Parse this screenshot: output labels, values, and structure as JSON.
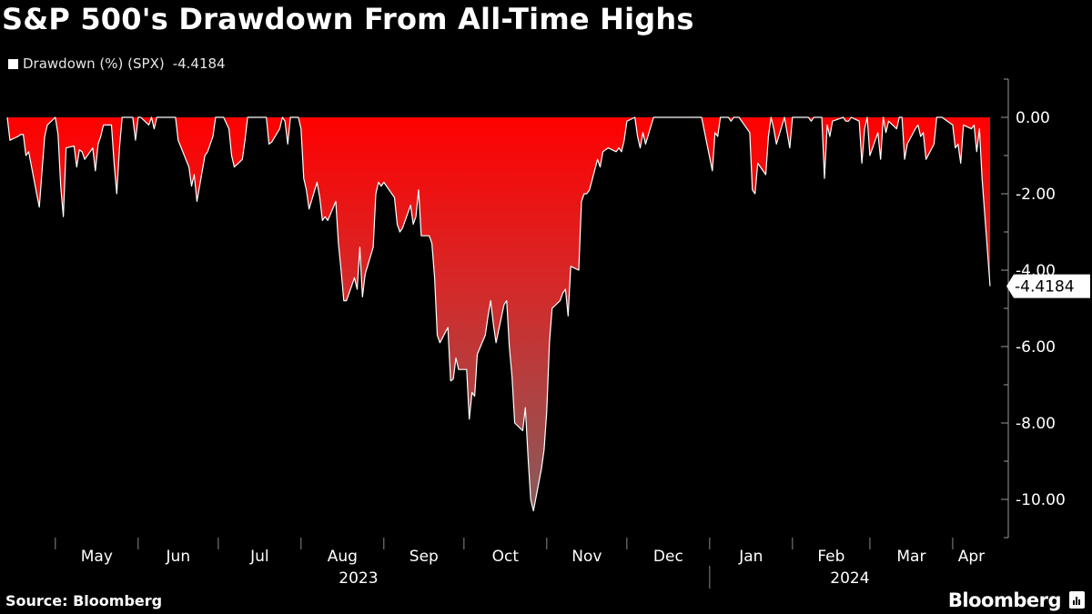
{
  "title": "S&P 500's Drawdown From All-Time Highs",
  "legend": {
    "label": "Drawdown (%) (SPX)",
    "last_value": "-4.4184"
  },
  "source": "Source: Bloomberg",
  "brand": "Bloomberg",
  "colors": {
    "background": "#000000",
    "fill_top": "#ff0000",
    "fill_bottom": "#8a5a5a",
    "line": "#ffffff",
    "text": "#ffffff"
  },
  "chart_data": {
    "type": "area",
    "series": [
      {
        "name": "Drawdown (%) (SPX)",
        "last_value": -4.4184
      }
    ],
    "y_ticks": [
      "0.00",
      "-2.00",
      "-4.00",
      "-6.00",
      "-8.00",
      "-10.00"
    ],
    "ylim": [
      -11.0,
      1.0
    ],
    "x_range": [
      "2023-04-13",
      "2024-04-15"
    ],
    "month_ticks": [
      "Apr",
      "May",
      "Jun",
      "Jul",
      "Aug",
      "Sep",
      "Oct",
      "Nov",
      "Dec",
      "Jan",
      "Feb",
      "Mar",
      "Apr"
    ],
    "year_labels": [
      "2023",
      "2024"
    ],
    "points": [
      [
        "2023-04-13",
        0
      ],
      [
        "2023-04-14",
        -0.6
      ],
      [
        "2023-04-17",
        -0.5
      ],
      [
        "2023-04-18",
        -0.45
      ],
      [
        "2023-04-19",
        -0.45
      ],
      [
        "2023-04-20",
        -1.0
      ],
      [
        "2023-04-21",
        -0.9
      ],
      [
        "2023-04-24",
        -2.0
      ],
      [
        "2023-04-25",
        -2.35
      ],
      [
        "2023-04-26",
        -1.4
      ],
      [
        "2023-04-27",
        -0.5
      ],
      [
        "2023-04-28",
        -0.2
      ],
      [
        "2023-05-01",
        0
      ],
      [
        "2023-05-02",
        -0.45
      ],
      [
        "2023-05-03",
        -1.8
      ],
      [
        "2023-05-04",
        -2.6
      ],
      [
        "2023-05-05",
        -0.8
      ],
      [
        "2023-05-08",
        -0.75
      ],
      [
        "2023-05-09",
        -1.3
      ],
      [
        "2023-05-10",
        -0.85
      ],
      [
        "2023-05-11",
        -0.9
      ],
      [
        "2023-05-12",
        -1.1
      ],
      [
        "2023-05-15",
        -0.8
      ],
      [
        "2023-05-16",
        -1.4
      ],
      [
        "2023-05-17",
        -0.7
      ],
      [
        "2023-05-18",
        -0.5
      ],
      [
        "2023-05-19",
        -0.2
      ],
      [
        "2023-05-22",
        -0.2
      ],
      [
        "2023-05-23",
        -1.2
      ],
      [
        "2023-05-24",
        -2.0
      ],
      [
        "2023-05-25",
        -0.8
      ],
      [
        "2023-05-26",
        0
      ],
      [
        "2023-05-30",
        0
      ],
      [
        "2023-05-31",
        -0.6
      ],
      [
        "2023-06-01",
        0
      ],
      [
        "2023-06-02",
        0
      ],
      [
        "2023-06-05",
        -0.2
      ],
      [
        "2023-06-06",
        0
      ],
      [
        "2023-06-07",
        -0.3
      ],
      [
        "2023-06-08",
        0
      ],
      [
        "2023-06-09",
        0
      ],
      [
        "2023-06-12",
        0
      ],
      [
        "2023-06-13",
        0
      ],
      [
        "2023-06-14",
        0
      ],
      [
        "2023-06-15",
        0
      ],
      [
        "2023-06-16",
        -0.6
      ],
      [
        "2023-06-20",
        -1.3
      ],
      [
        "2023-06-21",
        -1.8
      ],
      [
        "2023-06-22",
        -1.5
      ],
      [
        "2023-06-23",
        -2.2
      ],
      [
        "2023-06-26",
        -1.0
      ],
      [
        "2023-06-27",
        -0.9
      ],
      [
        "2023-06-28",
        -0.7
      ],
      [
        "2023-06-29",
        -0.5
      ],
      [
        "2023-06-30",
        0
      ],
      [
        "2023-07-03",
        0
      ],
      [
        "2023-07-05",
        -0.3
      ],
      [
        "2023-07-06",
        -1.0
      ],
      [
        "2023-07-07",
        -1.3
      ],
      [
        "2023-07-10",
        -1.1
      ],
      [
        "2023-07-11",
        -0.6
      ],
      [
        "2023-07-12",
        0
      ],
      [
        "2023-07-13",
        0
      ],
      [
        "2023-07-14",
        0
      ],
      [
        "2023-07-17",
        0
      ],
      [
        "2023-07-18",
        0
      ],
      [
        "2023-07-19",
        0
      ],
      [
        "2023-07-20",
        -0.7
      ],
      [
        "2023-07-21",
        -0.65
      ],
      [
        "2023-07-24",
        -0.3
      ],
      [
        "2023-07-25",
        0
      ],
      [
        "2023-07-26",
        -0.1
      ],
      [
        "2023-07-27",
        -0.7
      ],
      [
        "2023-07-28",
        0
      ],
      [
        "2023-07-31",
        0
      ],
      [
        "2023-08-01",
        -0.3
      ],
      [
        "2023-08-02",
        -1.6
      ],
      [
        "2023-08-03",
        -1.9
      ],
      [
        "2023-08-04",
        -2.4
      ],
      [
        "2023-08-07",
        -1.7
      ],
      [
        "2023-08-08",
        -2.1
      ],
      [
        "2023-08-09",
        -2.7
      ],
      [
        "2023-08-10",
        -2.6
      ],
      [
        "2023-08-11",
        -2.7
      ],
      [
        "2023-08-14",
        -2.2
      ],
      [
        "2023-08-15",
        -3.3
      ],
      [
        "2023-08-16",
        -4.0
      ],
      [
        "2023-08-17",
        -4.8
      ],
      [
        "2023-08-18",
        -4.8
      ],
      [
        "2023-08-21",
        -4.2
      ],
      [
        "2023-08-22",
        -4.5
      ],
      [
        "2023-08-23",
        -3.4
      ],
      [
        "2023-08-24",
        -4.7
      ],
      [
        "2023-08-25",
        -4.1
      ],
      [
        "2023-08-28",
        -3.4
      ],
      [
        "2023-08-29",
        -2.0
      ],
      [
        "2023-08-30",
        -1.7
      ],
      [
        "2023-08-31",
        -1.8
      ],
      [
        "2023-09-01",
        -1.7
      ],
      [
        "2023-09-05",
        -2.1
      ],
      [
        "2023-09-06",
        -2.8
      ],
      [
        "2023-09-07",
        -3.0
      ],
      [
        "2023-09-08",
        -2.9
      ],
      [
        "2023-09-11",
        -2.3
      ],
      [
        "2023-09-12",
        -2.8
      ],
      [
        "2023-09-13",
        -2.6
      ],
      [
        "2023-09-14",
        -1.9
      ],
      [
        "2023-09-15",
        -3.1
      ],
      [
        "2023-09-18",
        -3.1
      ],
      [
        "2023-09-19",
        -3.3
      ],
      [
        "2023-09-20",
        -4.2
      ],
      [
        "2023-09-21",
        -5.7
      ],
      [
        "2023-09-22",
        -5.9
      ],
      [
        "2023-09-25",
        -5.5
      ],
      [
        "2023-09-26",
        -6.9
      ],
      [
        "2023-09-27",
        -6.85
      ],
      [
        "2023-09-28",
        -6.3
      ],
      [
        "2023-09-29",
        -6.6
      ],
      [
        "2023-10-02",
        -6.6
      ],
      [
        "2023-10-03",
        -7.9
      ],
      [
        "2023-10-04",
        -7.2
      ],
      [
        "2023-10-05",
        -7.3
      ],
      [
        "2023-10-06",
        -6.2
      ],
      [
        "2023-10-09",
        -5.7
      ],
      [
        "2023-10-10",
        -5.2
      ],
      [
        "2023-10-11",
        -4.8
      ],
      [
        "2023-10-12",
        -5.4
      ],
      [
        "2023-10-13",
        -5.9
      ],
      [
        "2023-10-16",
        -4.9
      ],
      [
        "2023-10-17",
        -4.8
      ],
      [
        "2023-10-18",
        -6.0
      ],
      [
        "2023-10-19",
        -6.8
      ],
      [
        "2023-10-20",
        -8.0
      ],
      [
        "2023-10-23",
        -8.2
      ],
      [
        "2023-10-24",
        -7.6
      ],
      [
        "2023-10-25",
        -8.9
      ],
      [
        "2023-10-26",
        -10.0
      ],
      [
        "2023-10-27",
        -10.3
      ],
      [
        "2023-10-30",
        -9.2
      ],
      [
        "2023-10-31",
        -8.7
      ],
      [
        "2023-11-01",
        -7.7
      ],
      [
        "2023-11-02",
        -5.9
      ],
      [
        "2023-11-03",
        -5.0
      ],
      [
        "2023-11-06",
        -4.8
      ],
      [
        "2023-11-07",
        -4.6
      ],
      [
        "2023-11-08",
        -4.5
      ],
      [
        "2023-11-09",
        -5.2
      ],
      [
        "2023-11-10",
        -3.9
      ],
      [
        "2023-11-13",
        -4.0
      ],
      [
        "2023-11-14",
        -2.2
      ],
      [
        "2023-11-15",
        -2.0
      ],
      [
        "2023-11-16",
        -2.0
      ],
      [
        "2023-11-17",
        -1.9
      ],
      [
        "2023-11-20",
        -1.1
      ],
      [
        "2023-11-21",
        -1.3
      ],
      [
        "2023-11-22",
        -0.9
      ],
      [
        "2023-11-24",
        -0.8
      ],
      [
        "2023-11-27",
        -0.9
      ],
      [
        "2023-11-28",
        -0.8
      ],
      [
        "2023-11-29",
        -0.9
      ],
      [
        "2023-11-30",
        -0.6
      ],
      [
        "2023-12-01",
        -0.1
      ],
      [
        "2023-12-04",
        0
      ],
      [
        "2023-12-05",
        -0.5
      ],
      [
        "2023-12-06",
        -0.8
      ],
      [
        "2023-12-07",
        -0.4
      ],
      [
        "2023-12-08",
        -0.7
      ],
      [
        "2023-12-11",
        0
      ],
      [
        "2023-12-12",
        0
      ],
      [
        "2023-12-13",
        0
      ],
      [
        "2023-12-14",
        0
      ],
      [
        "2023-12-15",
        0
      ],
      [
        "2023-12-18",
        0
      ],
      [
        "2023-12-19",
        0
      ],
      [
        "2023-12-20",
        0
      ],
      [
        "2023-12-21",
        0
      ],
      [
        "2023-12-22",
        0
      ],
      [
        "2023-12-26",
        0
      ],
      [
        "2023-12-27",
        0
      ],
      [
        "2023-12-28",
        0
      ],
      [
        "2023-12-29",
        0
      ],
      [
        "2024-01-02",
        -1.4
      ],
      [
        "2024-01-03",
        -0.4
      ],
      [
        "2024-01-04",
        -0.5
      ],
      [
        "2024-01-05",
        0
      ],
      [
        "2024-01-08",
        0
      ],
      [
        "2024-01-09",
        -0.1
      ],
      [
        "2024-01-10",
        0
      ],
      [
        "2024-01-11",
        0
      ],
      [
        "2024-01-12",
        0
      ],
      [
        "2024-01-16",
        -0.4
      ],
      [
        "2024-01-17",
        -1.9
      ],
      [
        "2024-01-18",
        -2.0
      ],
      [
        "2024-01-19",
        -1.2
      ],
      [
        "2024-01-22",
        -1.5
      ],
      [
        "2024-01-23",
        -0.5
      ],
      [
        "2024-01-24",
        0
      ],
      [
        "2024-01-25",
        -0.3
      ],
      [
        "2024-01-26",
        -0.7
      ],
      [
        "2024-01-29",
        0
      ],
      [
        "2024-01-30",
        -0.4
      ],
      [
        "2024-01-31",
        -0.8
      ],
      [
        "2024-02-01",
        0
      ],
      [
        "2024-02-02",
        0
      ],
      [
        "2024-02-05",
        0
      ],
      [
        "2024-02-06",
        0
      ],
      [
        "2024-02-07",
        0
      ],
      [
        "2024-02-08",
        -0.1
      ],
      [
        "2024-02-09",
        0
      ],
      [
        "2024-02-12",
        0
      ],
      [
        "2024-02-13",
        -1.6
      ],
      [
        "2024-02-14",
        -0.2
      ],
      [
        "2024-02-15",
        -0.5
      ],
      [
        "2024-02-16",
        -0.1
      ],
      [
        "2024-02-20",
        0
      ],
      [
        "2024-02-21",
        -0.1
      ],
      [
        "2024-02-22",
        -0.1
      ],
      [
        "2024-02-23",
        0
      ],
      [
        "2024-02-26",
        -0.1
      ],
      [
        "2024-02-27",
        -1.2
      ],
      [
        "2024-02-28",
        -0.3
      ],
      [
        "2024-02-29",
        0
      ],
      [
        "2024-03-01",
        -1.0
      ],
      [
        "2024-03-04",
        -0.4
      ],
      [
        "2024-03-05",
        -1.1
      ],
      [
        "2024-03-06",
        0
      ],
      [
        "2024-03-07",
        -0.4
      ],
      [
        "2024-03-08",
        -0.1
      ],
      [
        "2024-03-11",
        -0.3
      ],
      [
        "2024-03-12",
        0
      ],
      [
        "2024-03-13",
        0
      ],
      [
        "2024-03-14",
        -1.1
      ],
      [
        "2024-03-15",
        -0.7
      ],
      [
        "2024-03-18",
        -0.3
      ],
      [
        "2024-03-19",
        -0.2
      ],
      [
        "2024-03-20",
        -0.5
      ],
      [
        "2024-03-21",
        -0.4
      ],
      [
        "2024-03-22",
        -1.1
      ],
      [
        "2024-03-25",
        -0.7
      ],
      [
        "2024-03-26",
        0
      ],
      [
        "2024-03-27",
        0
      ],
      [
        "2024-03-28",
        0
      ],
      [
        "2024-04-01",
        -0.2
      ],
      [
        "2024-04-02",
        -0.8
      ],
      [
        "2024-04-03",
        -0.7
      ],
      [
        "2024-04-04",
        -1.2
      ],
      [
        "2024-04-05",
        -0.2
      ],
      [
        "2024-04-08",
        -0.3
      ],
      [
        "2024-04-09",
        -0.2
      ],
      [
        "2024-04-10",
        -0.9
      ],
      [
        "2024-04-11",
        -0.3
      ],
      [
        "2024-04-12",
        -1.6
      ],
      [
        "2024-04-15",
        -4.4184
      ]
    ]
  }
}
